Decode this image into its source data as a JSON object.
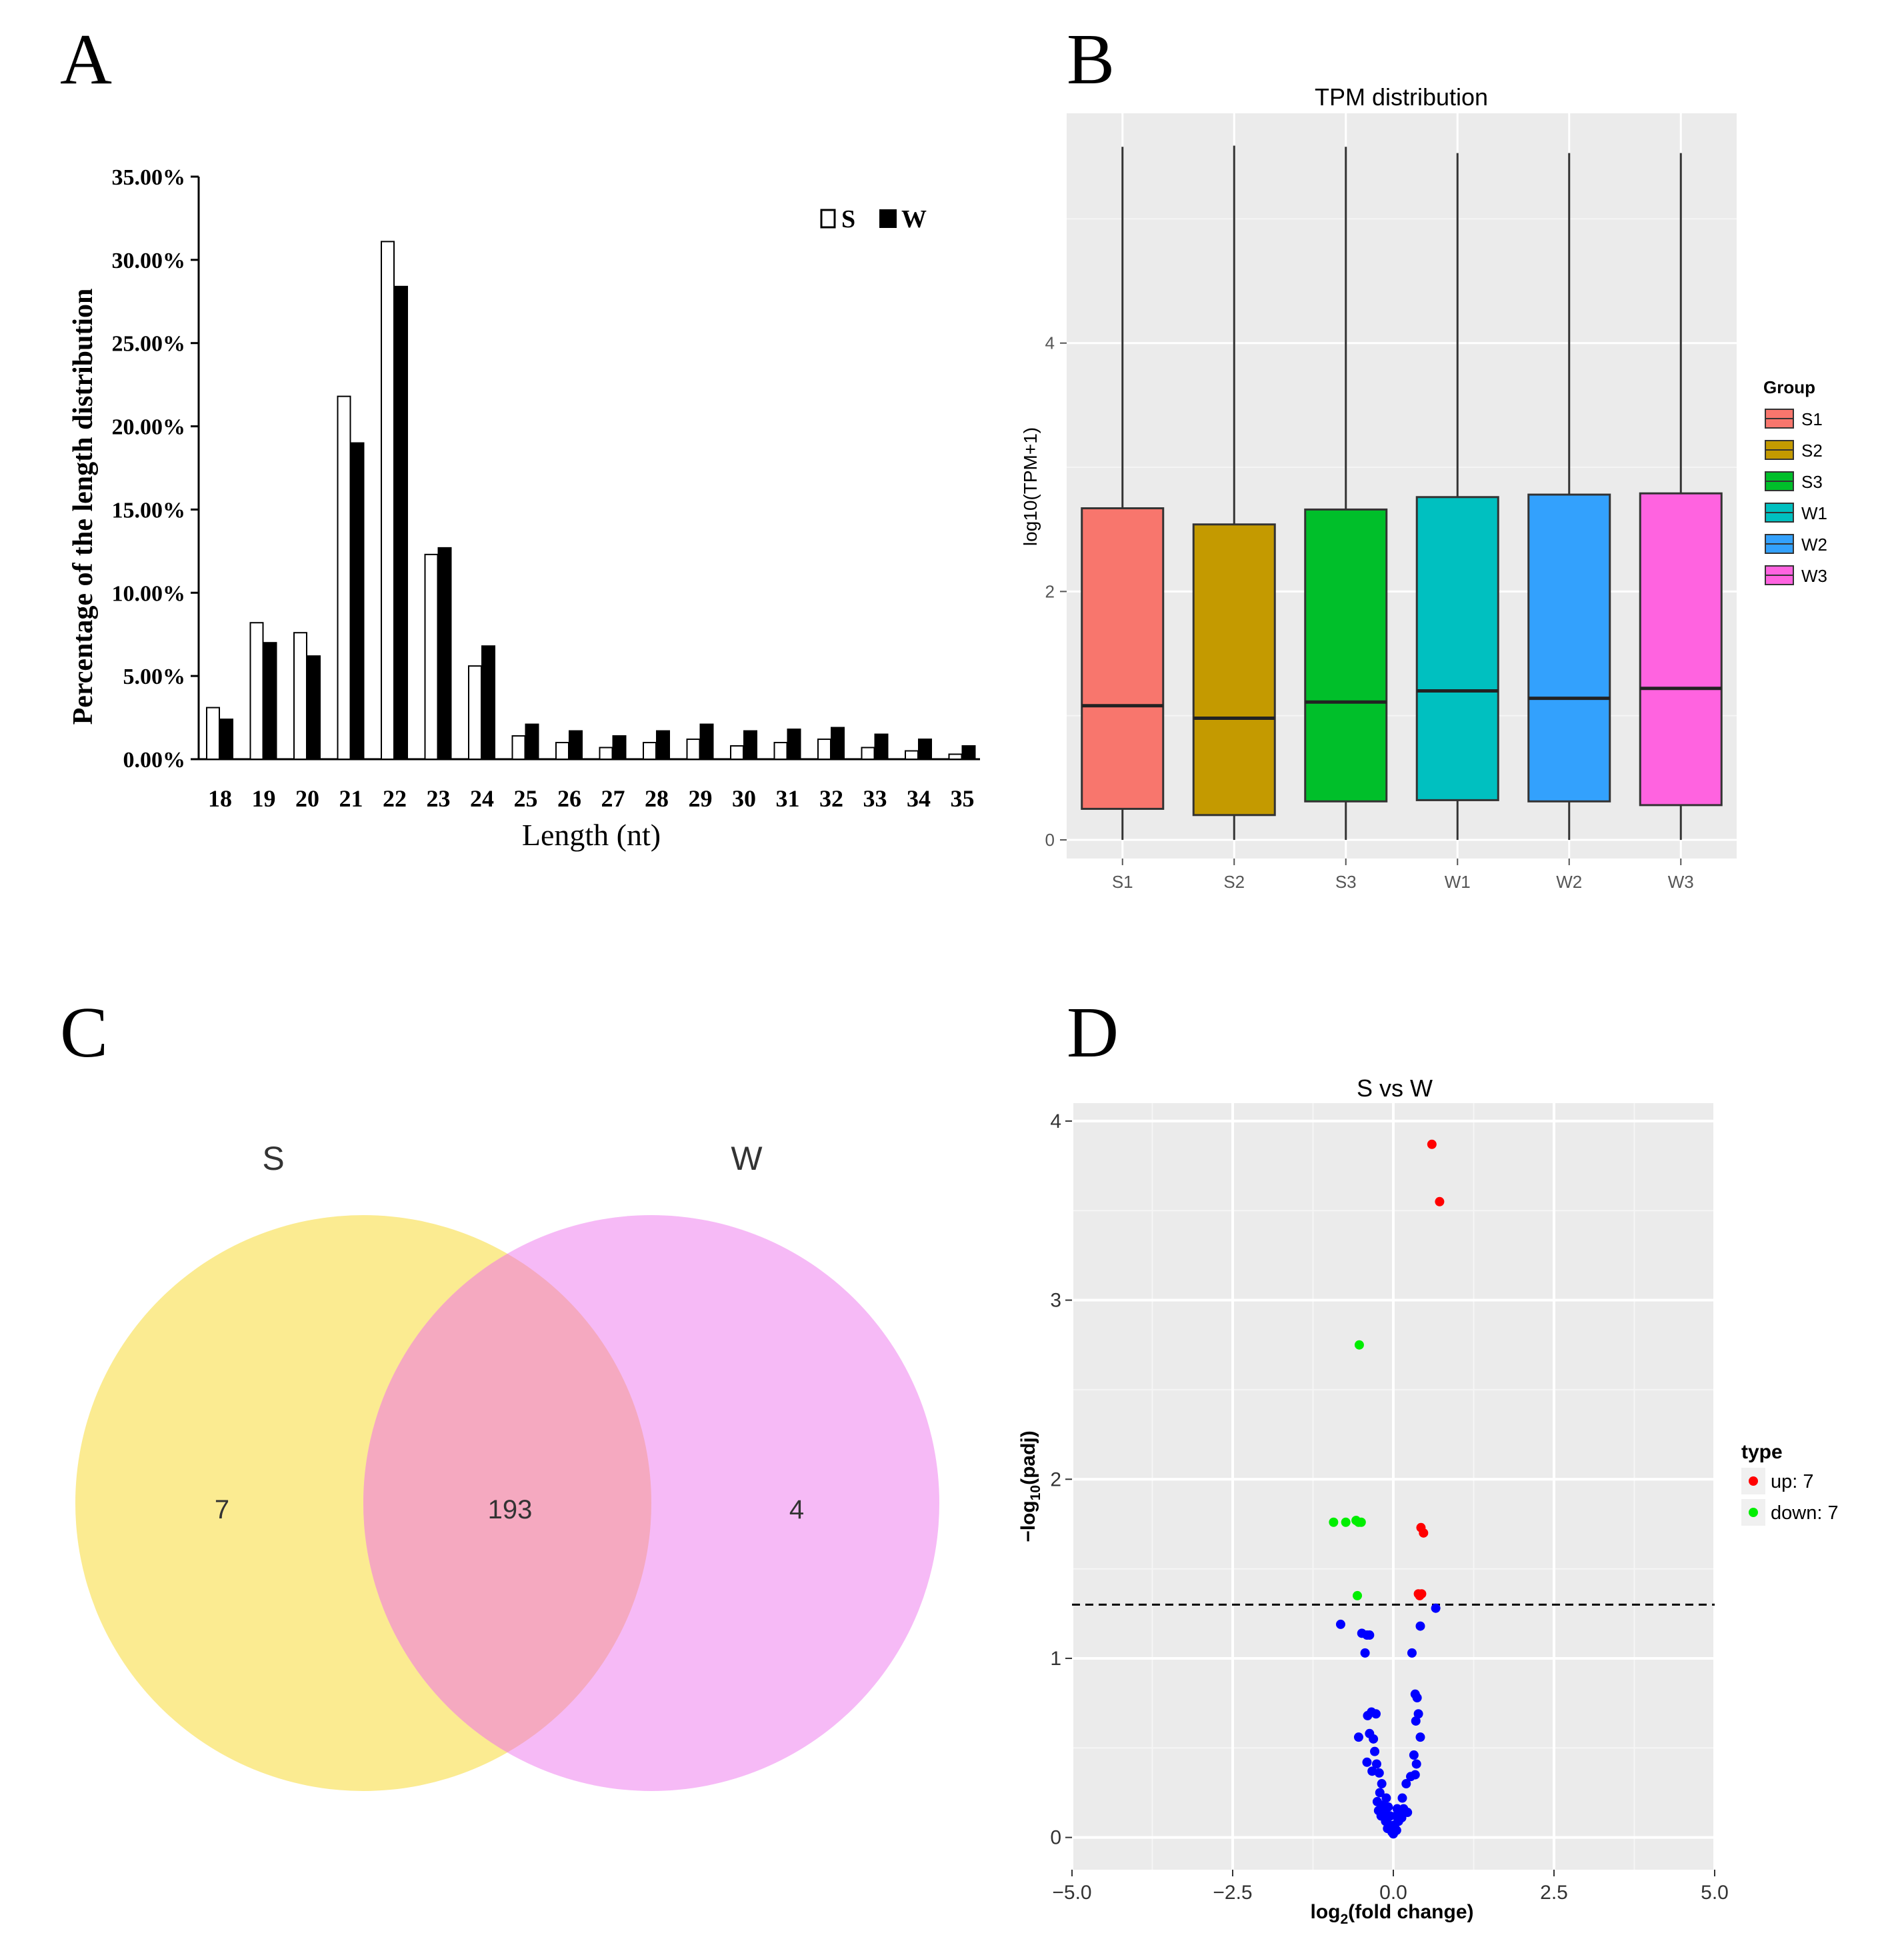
{
  "panel_labels": {
    "a": "A",
    "b": "B",
    "c": "C",
    "d": "D"
  },
  "chart_data": [
    {
      "id": "A",
      "type": "bar",
      "title": "",
      "xlabel": "Length (nt)",
      "ylabel": "Percentage of the length distribution",
      "categories": [
        "18",
        "19",
        "20",
        "21",
        "22",
        "23",
        "24",
        "25",
        "26",
        "27",
        "28",
        "29",
        "30",
        "31",
        "32",
        "33",
        "34",
        "35"
      ],
      "series": [
        {
          "name": "S",
          "color": "#ffffff",
          "values": [
            3.1,
            8.2,
            7.6,
            21.8,
            31.1,
            12.3,
            5.6,
            1.4,
            1.0,
            0.7,
            1.0,
            1.2,
            0.8,
            1.0,
            1.2,
            0.7,
            0.5,
            0.3
          ]
        },
        {
          "name": "W",
          "color": "#000000",
          "values": [
            2.4,
            7.0,
            6.2,
            19.0,
            28.4,
            12.7,
            6.8,
            2.1,
            1.7,
            1.4,
            1.7,
            2.1,
            1.7,
            1.8,
            1.9,
            1.5,
            1.2,
            0.8
          ]
        }
      ],
      "yticks": [
        "0.00%",
        "5.00%",
        "10.00%",
        "15.00%",
        "20.00%",
        "25.00%",
        "30.00%",
        "35.00%"
      ],
      "ylim": [
        0,
        35
      ],
      "legend_position": "top-right"
    },
    {
      "id": "B",
      "type": "box",
      "title": "TPM distribution",
      "xlabel": "",
      "ylabel": "log10(TPM+1)",
      "ylim": [
        -0.15,
        5.85
      ],
      "yticks": [
        "0",
        "2",
        "4"
      ],
      "legend_title": "Group",
      "groups": [
        {
          "name": "S1",
          "color": "#f8766d",
          "whisker_low": 0,
          "q1": 0.25,
          "median": 1.08,
          "q3": 2.67,
          "whisker_high": 5.58
        },
        {
          "name": "S2",
          "color": "#c49a00",
          "whisker_low": 0,
          "q1": 0.2,
          "median": 0.98,
          "q3": 2.54,
          "whisker_high": 5.59
        },
        {
          "name": "S3",
          "color": "#00bf2a",
          "whisker_low": 0,
          "q1": 0.31,
          "median": 1.11,
          "q3": 2.66,
          "whisker_high": 5.58
        },
        {
          "name": "W1",
          "color": "#00c0c0",
          "whisker_low": 0,
          "q1": 0.32,
          "median": 1.2,
          "q3": 2.76,
          "whisker_high": 5.53
        },
        {
          "name": "W2",
          "color": "#33a1fd",
          "whisker_low": 0,
          "q1": 0.31,
          "median": 1.14,
          "q3": 2.78,
          "whisker_high": 5.53
        },
        {
          "name": "W3",
          "color": "#ff63e0",
          "whisker_low": 0,
          "q1": 0.28,
          "median": 1.22,
          "q3": 2.79,
          "whisker_high": 5.53
        }
      ]
    },
    {
      "id": "C",
      "type": "venn",
      "sets": [
        {
          "name": "S",
          "only": "7",
          "color": "#fae87e"
        },
        {
          "name": "W",
          "only": "4",
          "color": "#f5aef5"
        }
      ],
      "intersection": "193",
      "intersection_color": "#f5a9c0"
    },
    {
      "id": "D",
      "type": "scatter",
      "title": "S vs W",
      "xlabel_main": "log",
      "xlabel_sub": "2",
      "xlabel_rest": "(fold change)",
      "ylabel_main": "−log",
      "ylabel_sub": "10",
      "ylabel_rest": "(padj)",
      "xlim": [
        -5,
        5
      ],
      "ylim": [
        -0.18,
        4.1
      ],
      "xticks": [
        "−5.0",
        "−2.5",
        "0.0",
        "2.5",
        "5.0"
      ],
      "yticks": [
        "0",
        "1",
        "2",
        "3",
        "4"
      ],
      "threshold_y": 1.3,
      "legend_title": "type",
      "legend_items": [
        {
          "label": "up: 7",
          "color": "#ff0000"
        },
        {
          "label": "down: 7",
          "color": "#00ee00"
        }
      ],
      "points": {
        "up": [
          [
            0.6,
            3.87
          ],
          [
            0.72,
            3.55
          ],
          [
            0.43,
            1.73
          ],
          [
            0.47,
            1.7
          ],
          [
            0.39,
            1.36
          ],
          [
            0.44,
            1.36
          ],
          [
            0.41,
            1.35
          ]
        ],
        "down": [
          [
            -0.53,
            2.75
          ],
          [
            -0.93,
            1.76
          ],
          [
            -0.74,
            1.76
          ],
          [
            -0.58,
            1.77
          ],
          [
            -0.54,
            1.76
          ],
          [
            -0.5,
            1.76
          ],
          [
            -0.56,
            1.35
          ]
        ],
        "ns": [
          [
            0.66,
            1.28
          ],
          [
            -0.82,
            1.19
          ],
          [
            0.42,
            1.18
          ],
          [
            -0.49,
            1.14
          ],
          [
            -0.41,
            1.13
          ],
          [
            -0.37,
            1.13
          ],
          [
            0.29,
            1.03
          ],
          [
            -0.44,
            1.03
          ],
          [
            0.34,
            0.8
          ],
          [
            0.37,
            0.78
          ],
          [
            -0.34,
            0.7
          ],
          [
            -0.27,
            0.69
          ],
          [
            -0.4,
            0.68
          ],
          [
            0.39,
            0.69
          ],
          [
            0.35,
            0.65
          ],
          [
            -0.37,
            0.58
          ],
          [
            -0.54,
            0.56
          ],
          [
            -0.31,
            0.55
          ],
          [
            0.42,
            0.56
          ],
          [
            -0.29,
            0.48
          ],
          [
            0.32,
            0.46
          ],
          [
            -0.41,
            0.42
          ],
          [
            -0.26,
            0.41
          ],
          [
            0.36,
            0.41
          ],
          [
            -0.33,
            0.37
          ],
          [
            -0.22,
            0.36
          ],
          [
            0.27,
            0.34
          ],
          [
            0.34,
            0.35
          ],
          [
            -0.18,
            0.3
          ],
          [
            0.2,
            0.3
          ],
          [
            -0.21,
            0.25
          ],
          [
            -0.11,
            0.22
          ],
          [
            0.14,
            0.22
          ],
          [
            -0.25,
            0.2
          ],
          [
            -0.17,
            0.18
          ],
          [
            -0.08,
            0.17
          ],
          [
            0.06,
            0.16
          ],
          [
            0.16,
            0.16
          ],
          [
            -0.23,
            0.15
          ],
          [
            -0.14,
            0.14
          ],
          [
            0.1,
            0.14
          ],
          [
            0.22,
            0.14
          ],
          [
            -0.19,
            0.12
          ],
          [
            -0.05,
            0.12
          ],
          [
            0.04,
            0.12
          ],
          [
            0.13,
            0.11
          ],
          [
            -0.12,
            0.09
          ],
          [
            0.08,
            0.09
          ],
          [
            -0.06,
            0.07
          ],
          [
            0.02,
            0.07
          ],
          [
            -0.09,
            0.05
          ],
          [
            0.05,
            0.04
          ],
          [
            -0.02,
            0.03
          ],
          [
            0.0,
            0.02
          ]
        ]
      }
    }
  ]
}
